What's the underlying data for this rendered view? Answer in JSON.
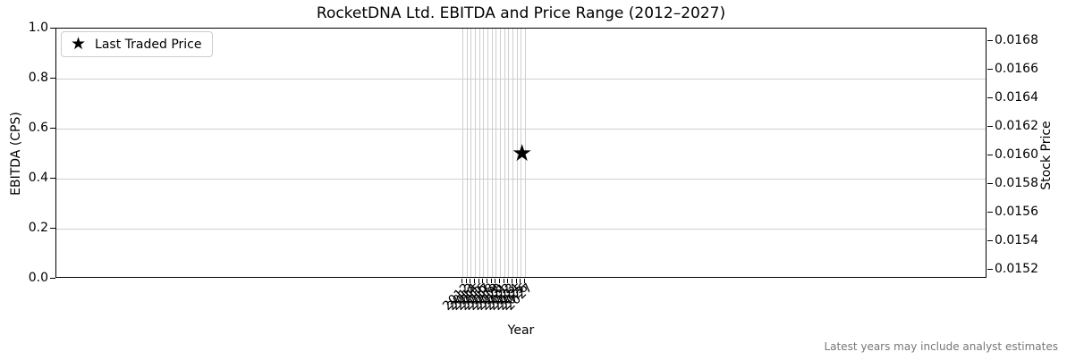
{
  "chart_data": {
    "type": "scatter",
    "title": "RocketDNA Ltd. EBITDA and Price Range (2012–2027)",
    "xlabel": "Year",
    "ylabel_left": "EBITDA (CPS)",
    "ylabel_right": "Stock Price",
    "x_tick_labels": [
      "2012",
      "2013",
      "2014",
      "2015",
      "2016",
      "2017",
      "2018",
      "2019",
      "2020",
      "2021",
      "2022",
      "2023",
      "2024",
      "2025",
      "2026",
      "2027"
    ],
    "left_axis": {
      "tick_labels": [
        "0.0",
        "0.2",
        "0.4",
        "0.6",
        "0.8",
        "1.0"
      ],
      "min": 0.0,
      "max": 1.0
    },
    "right_axis": {
      "tick_labels": [
        "0.0152",
        "0.0154",
        "0.0156",
        "0.0158",
        "0.0160",
        "0.0162",
        "0.0164",
        "0.0166",
        "0.0168"
      ],
      "min": 0.01514,
      "max": 0.01689
    },
    "grid": true,
    "legend": {
      "position": "upper-left",
      "entries": [
        {
          "label": "Last Traded Price",
          "marker": "star"
        }
      ]
    },
    "series": [
      {
        "name": "Last Traded Price",
        "axis": "right",
        "marker": "star",
        "color": "#000000",
        "points": [
          {
            "year": 2026.5,
            "price": 0.016
          }
        ]
      }
    ],
    "footnote": "Latest years may include analyst estimates"
  },
  "icons": {
    "star": "★"
  },
  "colors": {
    "grid": "#cfcfcf",
    "spine": "#000000",
    "text": "#000000",
    "footnote": "#777777",
    "legend_border": "#cccccc",
    "marker": "#000000"
  }
}
